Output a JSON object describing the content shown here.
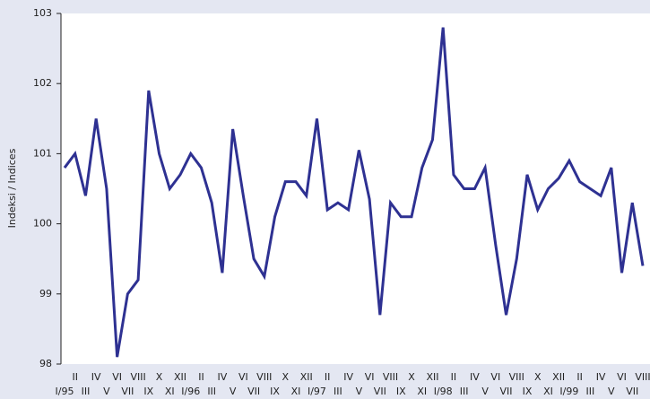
{
  "chart_data": {
    "type": "line",
    "y_label": "Indeksi / Indices",
    "categories": [
      "I/95",
      "II",
      "III",
      "IV",
      "V",
      "VI",
      "VII",
      "VIII",
      "IX",
      "X",
      "XI",
      "XII",
      "I/96",
      "II",
      "III",
      "IV",
      "V",
      "VI",
      "VII",
      "VIII",
      "IX",
      "X",
      "XI",
      "XII",
      "I/97",
      "II",
      "III",
      "IV",
      "V",
      "VI",
      "VII",
      "VIII",
      "IX",
      "X",
      "XI",
      "XII",
      "I/98",
      "II",
      "III",
      "IV",
      "V",
      "VI",
      "VII",
      "VIII",
      "IX",
      "X",
      "XI",
      "XII",
      "I/99",
      "II",
      "III",
      "IV",
      "V",
      "VI",
      "VII",
      "VIII"
    ],
    "series": [
      {
        "color": "#2e3192",
        "values": [
          100.8,
          101.0,
          100.4,
          101.5,
          100.5,
          98.1,
          99.0,
          99.2,
          101.9,
          101.0,
          100.5,
          100.7,
          101.0,
          100.8,
          100.3,
          99.3,
          101.35,
          100.4,
          99.5,
          99.25,
          100.1,
          100.6,
          100.6,
          100.4,
          101.5,
          100.2,
          100.3,
          100.2,
          101.05,
          100.35,
          98.7,
          100.3,
          100.1,
          100.1,
          100.8,
          101.2,
          102.8,
          100.7,
          100.5,
          100.5,
          100.8,
          99.7,
          98.7,
          99.5,
          100.7,
          100.2,
          100.5,
          100.65,
          100.9,
          100.6,
          100.5,
          100.4,
          100.8,
          99.3,
          100.3,
          99.4
        ]
      }
    ],
    "ylim": [
      98,
      103
    ],
    "yticks": [
      98,
      99,
      100,
      101,
      102,
      103
    ]
  }
}
